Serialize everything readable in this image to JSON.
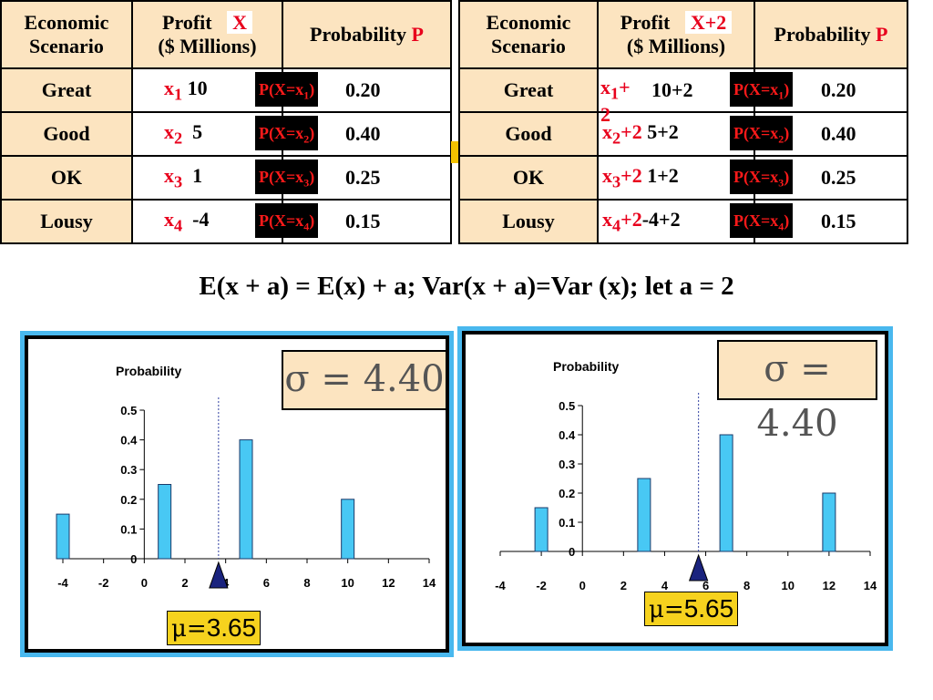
{
  "left_table": {
    "headers": {
      "scenario": "Economic Scenario",
      "profit": "Profit",
      "profit_tag": "X",
      "profit_unit": "($ Millions)",
      "probability": "Probability",
      "prob_tag": "P"
    },
    "rows": [
      {
        "scenario": "Great",
        "var": "x",
        "sub": "1",
        "profit": "10",
        "pbox_pre": "P(X=x",
        "pbox_sub": "1",
        "pbox_post": ")",
        "prob": "0.20"
      },
      {
        "scenario": "Good",
        "var": "x",
        "sub": "2",
        "profit": "5",
        "pbox_pre": "P(X=x",
        "pbox_sub": "2",
        "pbox_post": ")",
        "prob": "0.40"
      },
      {
        "scenario": "OK",
        "var": "x",
        "sub": "3",
        "profit": "1",
        "pbox_pre": "P(X=x",
        "pbox_sub": "3",
        "pbox_post": ")",
        "prob": "0.25"
      },
      {
        "scenario": "Lousy",
        "var": "x",
        "sub": "4",
        "profit": "-4",
        "pbox_pre": "P(X=x",
        "pbox_sub": "4",
        "pbox_post": ")",
        "prob": "0.15"
      }
    ]
  },
  "right_table": {
    "headers": {
      "scenario": "Economic Scenario",
      "profit": "Profit",
      "profit_tag": "X+2",
      "profit_unit": "($ Millions)",
      "probability": "Probability",
      "prob_tag": "P"
    },
    "rows": [
      {
        "scenario": "Great",
        "var": "x",
        "sub": "1",
        "suffix": "+ 2",
        "profit": "10+2",
        "pbox_pre": "P(X=x",
        "pbox_sub": "1",
        "pbox_post": ")",
        "prob": "0.20"
      },
      {
        "scenario": "Good",
        "var": "x",
        "sub": "2",
        "suffix": "+2",
        "profit": "5+2",
        "pbox_pre": "P(X=x",
        "pbox_sub": "2",
        "pbox_post": ")",
        "prob": "0.40"
      },
      {
        "scenario": "OK",
        "var": "x",
        "sub": "3",
        "suffix": "+2",
        "profit": "1+2",
        "pbox_pre": "P(X=x",
        "pbox_sub": "3",
        "pbox_post": ")",
        "prob": "0.25"
      },
      {
        "scenario": "Lousy",
        "var": "x",
        "sub": "4",
        "suffix": "+2",
        "profit": "-4+2",
        "pbox_pre": "P(X=x",
        "pbox_sub": "4",
        "pbox_post": ")",
        "prob": "0.15"
      }
    ]
  },
  "formula": "E(x + a) = E(x) + a; Var(x + a)=Var (x); let a = 2",
  "colors": {
    "bar": "#48C8F4",
    "panel_border": "#49B8EE",
    "header_bg": "#FCE4C0",
    "mu_bg": "#F6D21E",
    "marker": "#1A237E",
    "red": "#E8001C"
  },
  "chart_data": [
    {
      "type": "bar",
      "ylabel": "Probability",
      "x": [
        -4,
        1,
        5,
        10
      ],
      "values": [
        0.15,
        0.25,
        0.4,
        0.2
      ],
      "xlim": [
        -4,
        14
      ],
      "xticks": [
        -4,
        -2,
        0,
        2,
        4,
        6,
        8,
        10,
        12,
        14
      ],
      "ylim": [
        0,
        0.5
      ],
      "yticks": [
        "0.5",
        "0.4",
        "0.3",
        "0.2",
        "0.1",
        "0"
      ],
      "mean": 3.65,
      "sigma_label": "σ = 4.40",
      "mu_symbol": "μ=",
      "mu_value": "3.65"
    },
    {
      "type": "bar",
      "ylabel": "Probability",
      "x": [
        -2,
        3,
        7,
        12
      ],
      "values": [
        0.15,
        0.25,
        0.4,
        0.2
      ],
      "xlim": [
        -4,
        14
      ],
      "xticks": [
        -4,
        -2,
        0,
        2,
        4,
        6,
        8,
        10,
        12,
        14
      ],
      "ylim": [
        0,
        0.5
      ],
      "yticks": [
        "0.5",
        "0.4",
        "0.3",
        "0.2",
        "0.1",
        "0"
      ],
      "mean": 5.65,
      "sigma_label": "σ = 4.40",
      "mu_symbol": "μ=",
      "mu_value": "5.65"
    }
  ]
}
